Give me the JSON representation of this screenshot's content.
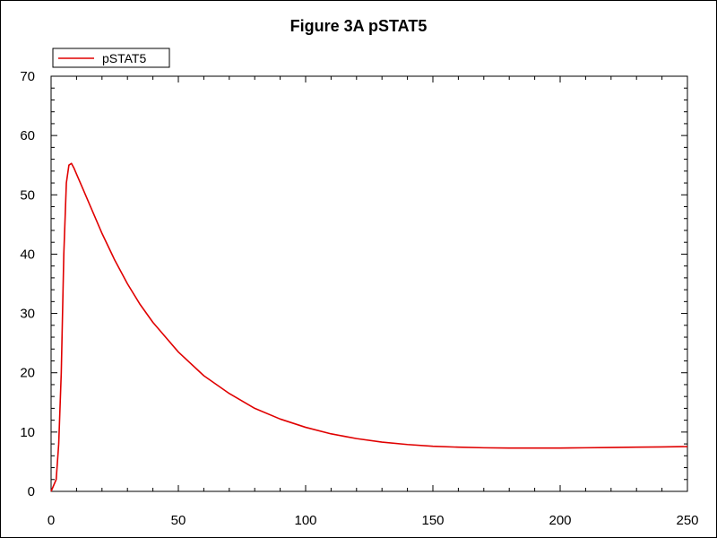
{
  "chart_data": {
    "type": "line",
    "title": "Figure 3A pSTAT5",
    "xlabel": "",
    "ylabel": "",
    "xlim": [
      0,
      250
    ],
    "ylim": [
      0,
      70
    ],
    "xticks": [
      0,
      50,
      100,
      150,
      200,
      250
    ],
    "yticks": [
      0,
      10,
      20,
      30,
      40,
      50,
      60,
      70
    ],
    "xtick_labels": [
      "0",
      "50",
      "100",
      "150",
      "200",
      "250"
    ],
    "ytick_labels": [
      "0",
      "10",
      "20",
      "30",
      "40",
      "50",
      "60",
      "70"
    ],
    "grid": false,
    "legend_position": "top-left",
    "series": [
      {
        "name": "pSTAT5",
        "color": "#e00000",
        "x": [
          0,
          2,
          3,
          4,
          5,
          6,
          7,
          8,
          9,
          10,
          12,
          15,
          20,
          25,
          30,
          35,
          40,
          50,
          60,
          70,
          80,
          90,
          100,
          110,
          120,
          130,
          140,
          150,
          160,
          170,
          180,
          190,
          200,
          210,
          220,
          230,
          240,
          250
        ],
        "y": [
          0,
          2,
          8,
          20,
          40,
          52,
          55,
          55.3,
          54.5,
          53.5,
          51.5,
          48.5,
          43.5,
          39,
          35,
          31.5,
          28.5,
          23.5,
          19.5,
          16.5,
          14,
          12.2,
          10.8,
          9.7,
          8.9,
          8.3,
          7.9,
          7.6,
          7.45,
          7.35,
          7.3,
          7.3,
          7.3,
          7.35,
          7.4,
          7.45,
          7.5,
          7.55
        ]
      }
    ]
  }
}
